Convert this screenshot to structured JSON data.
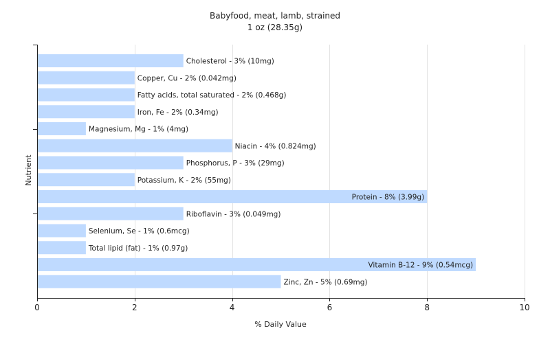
{
  "chart_data": {
    "type": "bar",
    "orientation": "horizontal",
    "title": "Babyfood, meat, lamb, strained",
    "subtitle": "1 oz (28.35g)",
    "xlabel": "% Daily Value",
    "ylabel": "Nutrient",
    "xlim": [
      0,
      10
    ],
    "xticks": [
      "0",
      "2",
      "4",
      "6",
      "8",
      "10"
    ],
    "grid": true,
    "categories": [
      "Cholesterol",
      "Copper, Cu",
      "Fatty acids, total saturated",
      "Iron, Fe",
      "Magnesium, Mg",
      "Niacin",
      "Phosphorus, P",
      "Potassium, K",
      "Protein",
      "Riboflavin",
      "Selenium, Se",
      "Total lipid (fat)",
      "Vitamin B-12",
      "Zinc, Zn"
    ],
    "values": [
      3,
      2,
      2,
      2,
      1,
      4,
      3,
      2,
      8,
      3,
      1,
      1,
      9,
      5
    ],
    "labels": [
      "Cholesterol - 3% (10mg)",
      "Copper, Cu - 2% (0.042mg)",
      "Fatty acids, total saturated - 2% (0.468g)",
      "Iron, Fe - 2% (0.34mg)",
      "Magnesium, Mg - 1% (4mg)",
      "Niacin - 4% (0.824mg)",
      "Phosphorus, P - 3% (29mg)",
      "Potassium, K - 2% (55mg)",
      "Protein - 8% (3.99g)",
      "Riboflavin - 3% (0.049mg)",
      "Selenium, Se - 1% (0.6mcg)",
      "Total lipid (fat) - 1% (0.97g)",
      "Vitamin B-12 - 9% (0.54mcg)",
      "Zinc, Zn - 5% (0.69mg)"
    ],
    "colors": {
      "bar": "#bfdaff",
      "grid": "#e3e3e3",
      "axis": "#222222",
      "text": "#222222"
    }
  }
}
